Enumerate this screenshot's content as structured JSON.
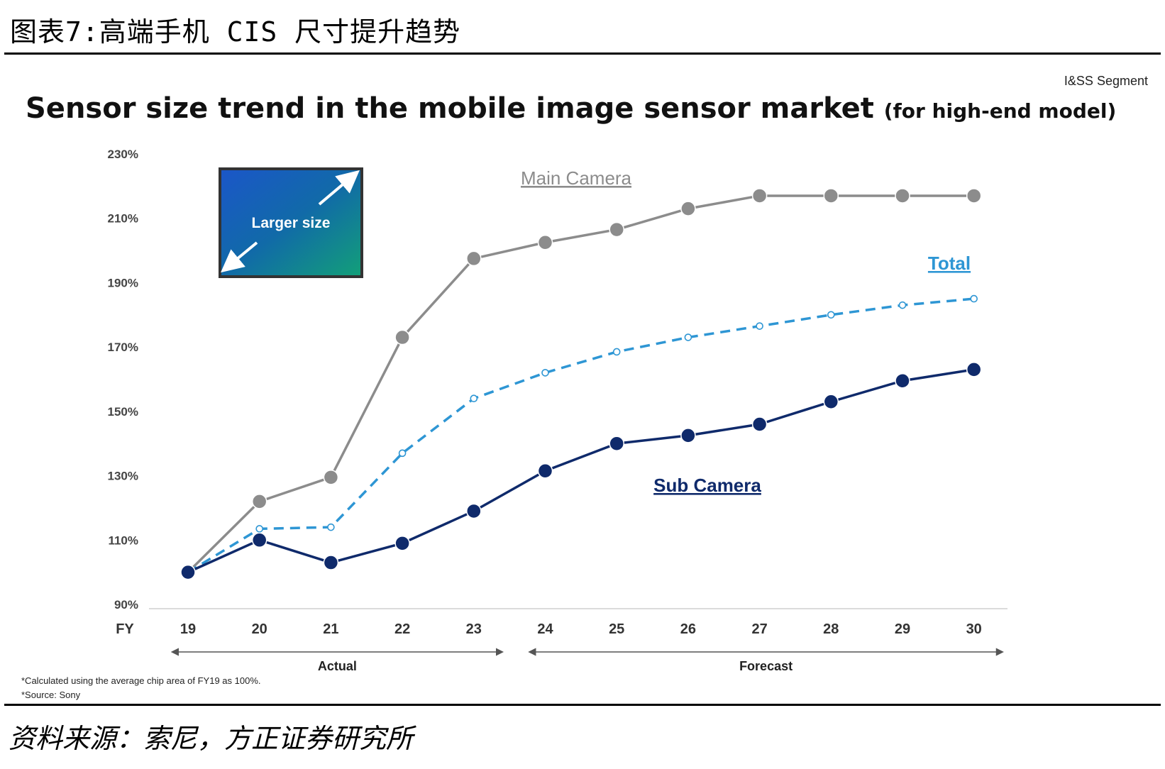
{
  "figure": {
    "title": "图表7:高端手机 CIS 尺寸提升趋势",
    "segment_label": "I&SS Segment",
    "notes": [
      "*Calculated using the average chip area of FY19 as 100%.",
      "*Source: Sony"
    ],
    "source": "资料来源：索尼，方正证券研究所"
  },
  "inset": {
    "label": "Larger size"
  },
  "chart_data": {
    "type": "line",
    "title": "Sensor size trend in the mobile image sensor market",
    "subtitle": "(for high-end model)",
    "xlabel": "FY",
    "ylabel": "",
    "x": [
      "19",
      "20",
      "21",
      "22",
      "23",
      "24",
      "25",
      "26",
      "27",
      "28",
      "29",
      "30"
    ],
    "y_ticks": [
      "230%",
      "210%",
      "190%",
      "170%",
      "150%",
      "130%",
      "110%",
      "90%"
    ],
    "ylim": [
      90,
      230
    ],
    "grid": false,
    "legend": "inline labels",
    "series": [
      {
        "name": "Main Camera",
        "color": "#8c8c8c",
        "style": "solid",
        "values": [
          100,
          122,
          129.5,
          173,
          197.5,
          202.5,
          206.5,
          213,
          217,
          217,
          217,
          217
        ]
      },
      {
        "name": "Total",
        "color": "#2e96d4",
        "style": "dashed",
        "values": [
          100,
          113.5,
          114,
          137,
          154,
          162,
          168.5,
          173,
          176.5,
          180,
          183,
          185
        ]
      },
      {
        "name": "Sub Camera",
        "color": "#0f2a6b",
        "style": "solid",
        "values": [
          100,
          110,
          103,
          109,
          119,
          131.5,
          140,
          142.5,
          146,
          153,
          159.5,
          163
        ]
      }
    ],
    "periods": [
      {
        "label": "Actual",
        "from": "19",
        "to": "23"
      },
      {
        "label": "Forecast",
        "from": "24",
        "to": "30"
      }
    ]
  }
}
